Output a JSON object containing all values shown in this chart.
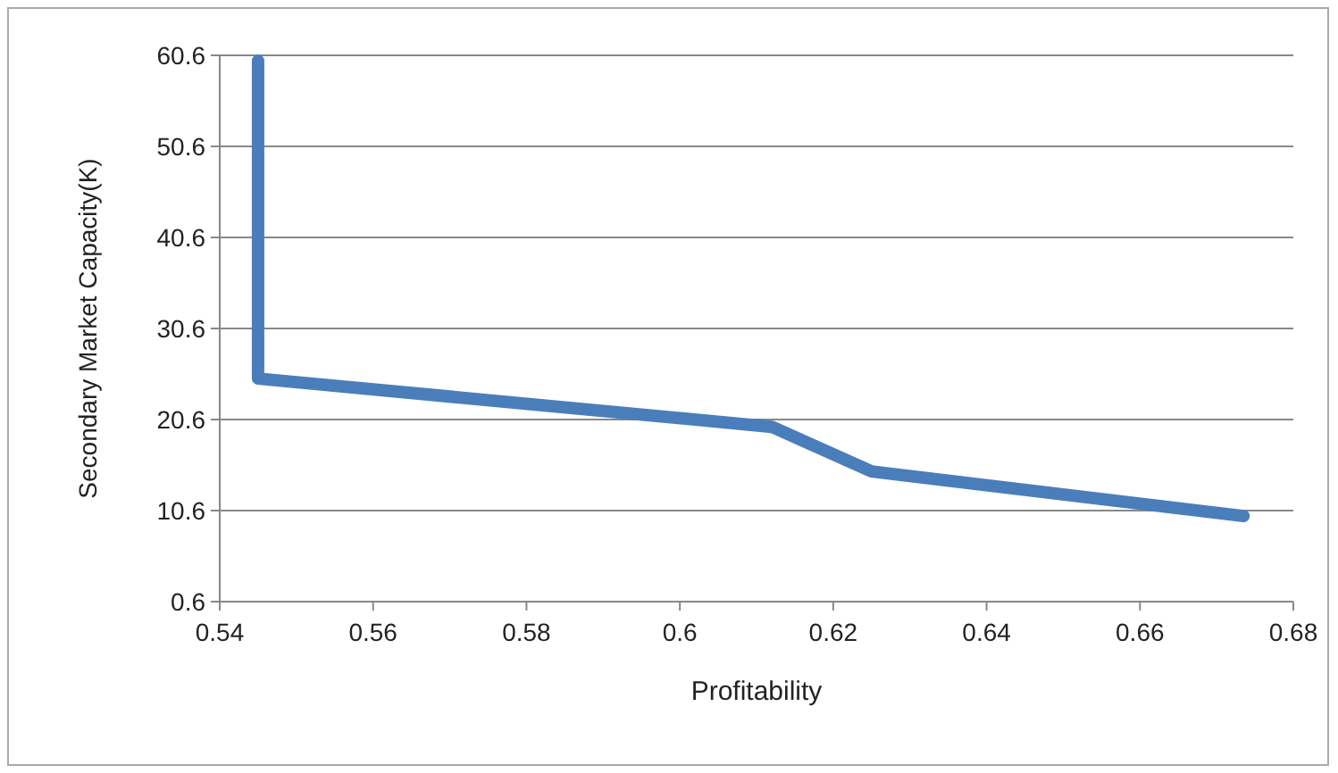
{
  "chart_data": {
    "type": "line",
    "xlabel": "Profitability",
    "ylabel": "Secondary Market Capacity(K)",
    "x": [
      0.545,
      0.545,
      0.612,
      0.625,
      0.6735
    ],
    "series": [
      {
        "color": "#4a7ebb",
        "values": [
          60,
          25.1,
          19.8,
          14.9,
          10.0
        ]
      }
    ],
    "xlim": [
      0.54,
      0.68
    ],
    "xticks": [
      0.54,
      0.56,
      0.58,
      0.6,
      0.62,
      0.64,
      0.66,
      0.68
    ],
    "ylim": [
      0.6,
      60.6
    ],
    "yticks": [
      0.6,
      10.6,
      20.6,
      30.6,
      40.6,
      50.6,
      60.6
    ],
    "grid": "y",
    "marker": "none",
    "line_style": "solid"
  }
}
